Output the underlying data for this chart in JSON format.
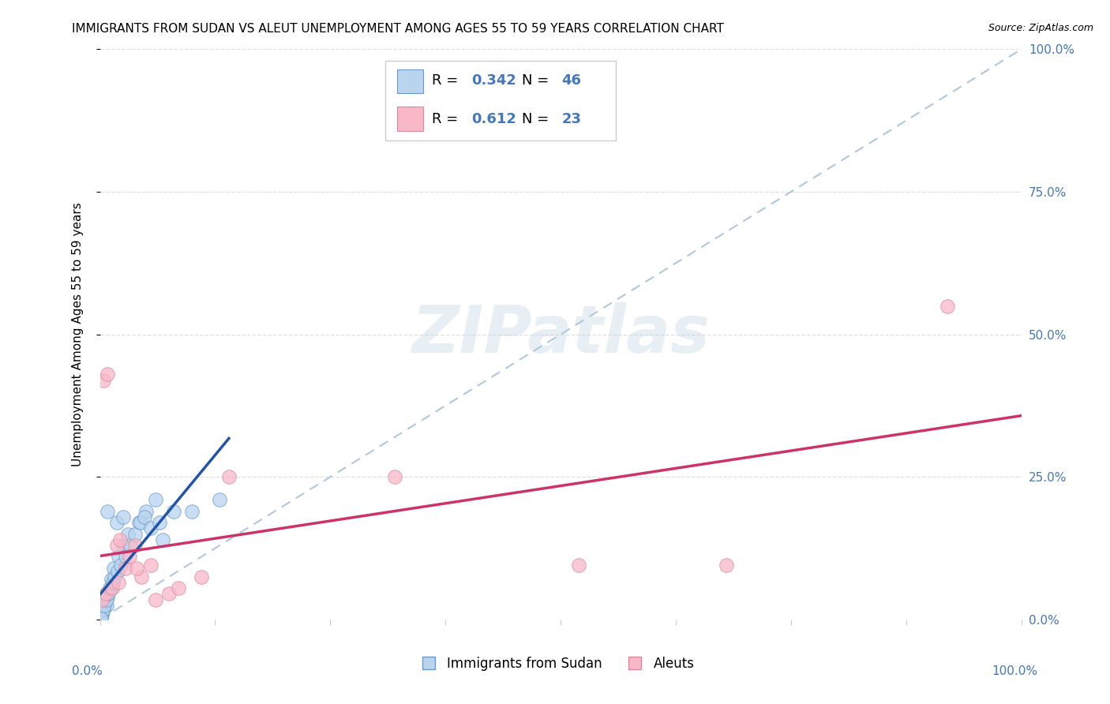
{
  "title": "IMMIGRANTS FROM SUDAN VS ALEUT UNEMPLOYMENT AMONG AGES 55 TO 59 YEARS CORRELATION CHART",
  "source": "Source: ZipAtlas.com",
  "ylabel": "Unemployment Among Ages 55 to 59 years",
  "xlim": [
    0,
    1
  ],
  "ylim": [
    0,
    1
  ],
  "xtick_positions": [
    0.0,
    0.125,
    0.25,
    0.375,
    0.5,
    0.625,
    0.75,
    0.875,
    1.0
  ],
  "ytick_positions": [
    0.0,
    0.25,
    0.5,
    0.75,
    1.0
  ],
  "yticklabels": [
    "0.0%",
    "25.0%",
    "50.0%",
    "75.0%",
    "100.0%"
  ],
  "legend_r1": "0.342",
  "legend_n1": "46",
  "legend_r2": "0.612",
  "legend_n2": "23",
  "blue_face": "#b8d4ee",
  "blue_edge": "#6699cc",
  "pink_face": "#f8b8c8",
  "pink_edge": "#dd8899",
  "trend_blue": "#2255aa",
  "trend_pink": "#cc3366",
  "ref_line": "#b0c8dc",
  "tick_color": "#4477bb",
  "watermark": "ZIPatlas",
  "sudan_x": [
    0.018,
    0.025,
    0.008,
    0.003,
    0.005,
    0.012,
    0.007,
    0.003,
    0.001,
    0.002,
    0.003,
    0.004,
    0.006,
    0.008,
    0.012,
    0.015,
    0.02,
    0.025,
    0.03,
    0.042,
    0.05,
    0.06,
    0.068,
    0.1,
    0.13,
    0.002,
    0.001,
    0.0005,
    0.004,
    0.005,
    0.007,
    0.009,
    0.011,
    0.014,
    0.016,
    0.019,
    0.023,
    0.028,
    0.033,
    0.038,
    0.044,
    0.048,
    0.055,
    0.065,
    0.08,
    0.001
  ],
  "sudan_y": [
    0.17,
    0.18,
    0.19,
    0.04,
    0.035,
    0.055,
    0.025,
    0.015,
    0.008,
    0.012,
    0.02,
    0.03,
    0.035,
    0.04,
    0.07,
    0.09,
    0.11,
    0.13,
    0.15,
    0.17,
    0.19,
    0.21,
    0.14,
    0.19,
    0.21,
    0.008,
    0.004,
    0.002,
    0.018,
    0.025,
    0.035,
    0.045,
    0.055,
    0.065,
    0.075,
    0.085,
    0.095,
    0.11,
    0.13,
    0.15,
    0.17,
    0.18,
    0.16,
    0.17,
    0.19,
    0.002
  ],
  "aleut_x": [
    0.004,
    0.008,
    0.018,
    0.022,
    0.028,
    0.038,
    0.045,
    0.055,
    0.11,
    0.14,
    0.32,
    0.52,
    0.68,
    0.002,
    0.006,
    0.013,
    0.02,
    0.032,
    0.04,
    0.06,
    0.075,
    0.085,
    0.92
  ],
  "aleut_y": [
    0.42,
    0.43,
    0.13,
    0.14,
    0.09,
    0.13,
    0.075,
    0.095,
    0.075,
    0.25,
    0.25,
    0.095,
    0.095,
    0.035,
    0.045,
    0.055,
    0.065,
    0.11,
    0.09,
    0.035,
    0.045,
    0.055,
    0.55
  ]
}
